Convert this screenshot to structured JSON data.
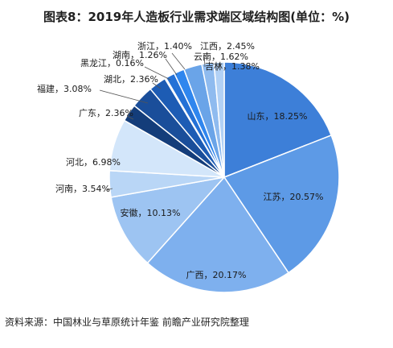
{
  "title": "图表8：2019年人造板行业需求端区域结构图(单位：%)",
  "source": "资料来源：中国林业与草原统计年鉴 前瞻产业研究院整理",
  "chart_data": {
    "type": "pie",
    "unit": "%",
    "start_angle_deg": 0,
    "direction": "clockwise",
    "slices": [
      {
        "label": "山东",
        "value": 18.25,
        "text": "山东，18.25%",
        "color": "#3d7fd8",
        "label_pos": "inside"
      },
      {
        "label": "江苏",
        "value": 20.57,
        "text": "江苏，20.57%",
        "color": "#5d9ae6",
        "label_pos": "inside"
      },
      {
        "label": "广西",
        "value": 20.17,
        "text": "广西，20.17%",
        "color": "#7eb0ee",
        "label_pos": "inside"
      },
      {
        "label": "安徽",
        "value": 10.13,
        "text": "安徽，10.13%",
        "color": "#9dc4f2",
        "label_pos": "inside"
      },
      {
        "label": "河南",
        "value": 3.54,
        "text": "河南，3.54%",
        "color": "#b9d6f6",
        "label_pos": "outside"
      },
      {
        "label": "河北",
        "value": 6.98,
        "text": "河北，6.98%",
        "color": "#d3e6fa",
        "label_pos": "inside"
      },
      {
        "label": "广东",
        "value": 2.36,
        "text": "广东，2.36%",
        "color": "#143d7a",
        "label_pos": "outside"
      },
      {
        "label": "福建",
        "value": 3.08,
        "text": "福建，3.08%",
        "color": "#1a4e9a",
        "label_pos": "outside"
      },
      {
        "label": "湖北",
        "value": 2.36,
        "text": "湖北，2.36%",
        "color": "#1d5cb4",
        "label_pos": "outside"
      },
      {
        "label": "黑龙江",
        "value": 0.16,
        "text": "黑龙江，0.16%",
        "color": "#1f66c8",
        "label_pos": "outside"
      },
      {
        "label": "湖南",
        "value": 1.26,
        "text": "湖南，1.26%",
        "color": "#2471d6",
        "label_pos": "outside"
      },
      {
        "label": "浙江",
        "value": 1.4,
        "text": "浙江，1.40%",
        "color": "#2f86ee",
        "label_pos": "outside"
      },
      {
        "label": "江西",
        "value": 2.45,
        "text": "江西，2.45%",
        "color": "#6aa4e8",
        "label_pos": "outside"
      },
      {
        "label": "云南",
        "value": 1.62,
        "text": "云南，1.62%",
        "color": "#8fbbef",
        "label_pos": "outside"
      },
      {
        "label": "吉林",
        "value": 1.38,
        "text": "吉林，1.38%",
        "color": "#b2d1f5",
        "label_pos": "outside"
      }
    ]
  }
}
